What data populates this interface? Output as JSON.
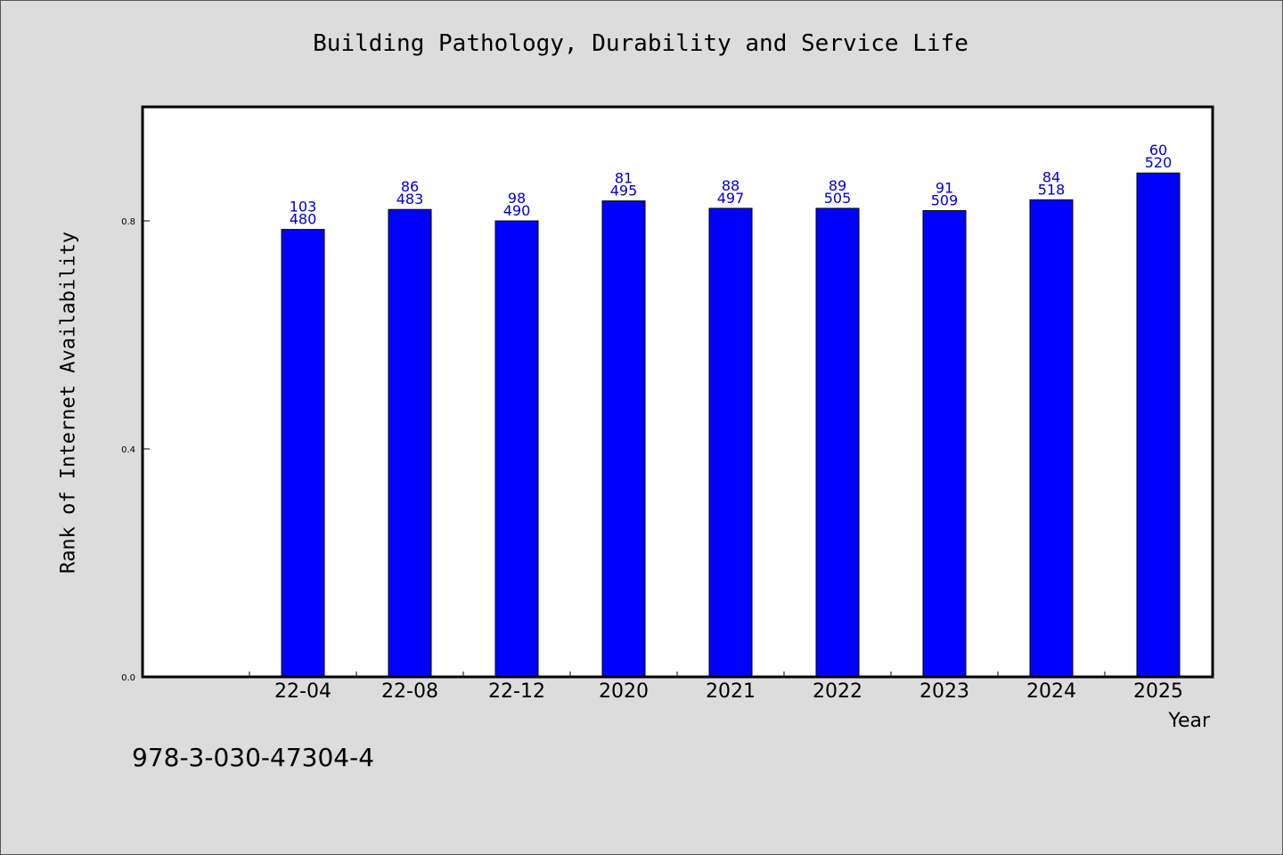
{
  "chart_data": {
    "type": "bar",
    "title": "Building Pathology, Durability and Service Life",
    "xlabel": "Year",
    "ylabel": "Rank of Internet Availability",
    "categories": [
      "22-04",
      "22-08",
      "22-12",
      "2020",
      "2021",
      "2022",
      "2023",
      "2024",
      "2025"
    ],
    "values": [
      0.785,
      0.82,
      0.8,
      0.835,
      0.822,
      0.822,
      0.818,
      0.837,
      0.884
    ],
    "label_top": [
      "103",
      "86",
      "98",
      "81",
      "88",
      "89",
      "91",
      "84",
      "60"
    ],
    "label_bottom": [
      "480",
      "483",
      "490",
      "495",
      "497",
      "505",
      "509",
      "518",
      "520"
    ],
    "yticks": [
      0.0,
      0.4,
      0.8
    ],
    "ytick_labels": [
      "0.0",
      "0.4",
      "0.8"
    ],
    "ylim": [
      0,
      1.0
    ],
    "bar_color": "#0000ff",
    "label_color": "#0000cc",
    "grid": false,
    "legend": "none"
  },
  "footer": {
    "isbn": "978-3-030-47304-4"
  }
}
